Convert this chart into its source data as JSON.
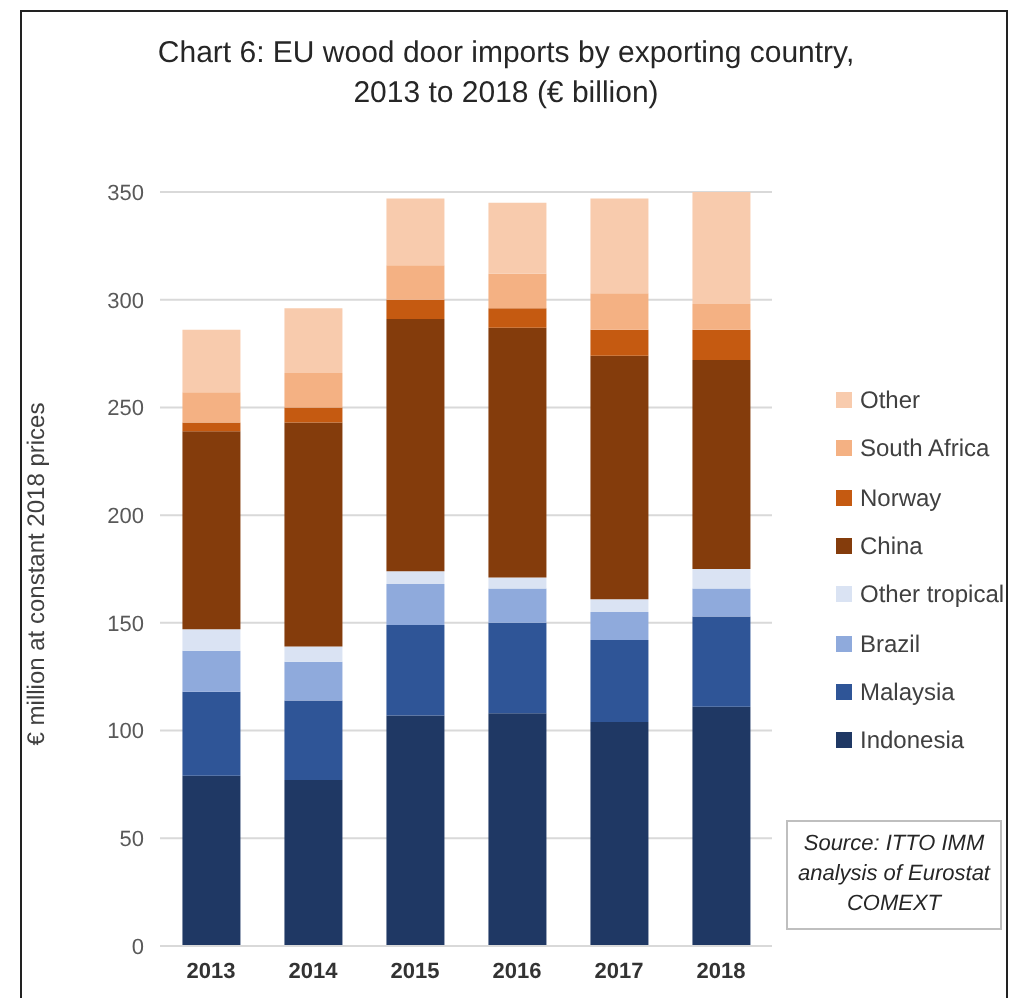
{
  "chart_data": {
    "type": "bar",
    "title": "Chart 6: EU wood door imports by exporting country,\n2013 to 2018 (€ billion)",
    "ylabel": "€ million at constant 2018 prices",
    "categories": [
      "2013",
      "2014",
      "2015",
      "2016",
      "2017",
      "2018"
    ],
    "series": [
      {
        "name": "Indonesia",
        "color": "#1f3864",
        "values": [
          79,
          77,
          107,
          108,
          104,
          111
        ]
      },
      {
        "name": "Malaysia",
        "color": "#2f5597",
        "values": [
          39,
          37,
          42,
          42,
          38,
          42
        ]
      },
      {
        "name": "Brazil",
        "color": "#8faadc",
        "values": [
          19,
          18,
          19,
          16,
          13,
          13
        ]
      },
      {
        "name": "Other tropical",
        "color": "#dae3f3",
        "values": [
          10,
          7,
          6,
          5,
          6,
          9
        ]
      },
      {
        "name": "China",
        "color": "#843c0c",
        "values": [
          92,
          104,
          117,
          116,
          113,
          97
        ]
      },
      {
        "name": "Norway",
        "color": "#c55a11",
        "values": [
          4,
          7,
          9,
          9,
          12,
          14
        ]
      },
      {
        "name": "South Africa",
        "color": "#f4b183",
        "values": [
          14,
          16,
          16,
          16,
          17,
          12
        ]
      },
      {
        "name": "Other",
        "color": "#f8cbad",
        "values": [
          29,
          30,
          31,
          33,
          44,
          52
        ]
      }
    ],
    "stacked": true,
    "ylim": [
      0,
      350
    ],
    "yticks": [
      0,
      50,
      100,
      150,
      200,
      250,
      300,
      350
    ],
    "grid": "y",
    "legend": "right",
    "annotations": [
      "Source: ITTO IMM analysis of Eurostat COMEXT"
    ]
  }
}
